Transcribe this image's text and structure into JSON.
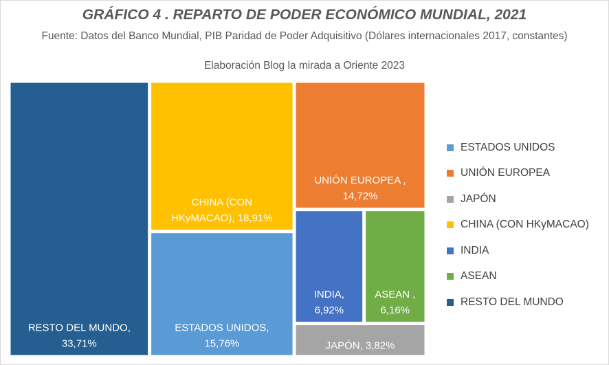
{
  "title": "GRÁFICO 4 .  REPARTO DE PODER ECONÓMICO  MUNDIAL, 2021",
  "subtitle_line1": "Fuente:  Datos del Banco Mundial, PIB Paridad de Poder Adquisitivo (Dólares internacionales 2017, constantes)",
  "subtitle_line2": "Elaboración Blog la mirada a Oriente 2023",
  "chart_data": {
    "type": "treemap",
    "title": "GRÁFICO 4 .  REPARTO DE PODER ECONÓMICO  MUNDIAL, 2021",
    "unit": "%",
    "items": [
      {
        "name": "RESTO DEL MUNDO",
        "value": 33.71,
        "label1": "RESTO DEL MUNDO,",
        "label2": "33,71%",
        "color": "#255E91"
      },
      {
        "name": "CHINA (CON HKyMACAO)",
        "value": 18.91,
        "label1": "CHINA (CON",
        "label2": "HKyMACAO), 18,91%",
        "color": "#FFC000"
      },
      {
        "name": "ESTADOS UNIDOS",
        "value": 15.76,
        "label1": "ESTADOS UNIDOS,",
        "label2": "15,76%",
        "color": "#5B9BD5"
      },
      {
        "name": "UNIÓN EUROPEA",
        "value": 14.72,
        "label1": "UNIÓN EUROPEA ,",
        "label2": "14,72%",
        "color": "#ED7D31"
      },
      {
        "name": "INDIA",
        "value": 6.92,
        "label1": "INDIA,",
        "label2": "6,92%",
        "color": "#4472C4"
      },
      {
        "name": "ASEAN",
        "value": 6.16,
        "label1": "ASEAN ,",
        "label2": "6,16%",
        "color": "#70AD47"
      },
      {
        "name": "JAPÓN",
        "value": 3.82,
        "label1": "JAPÓN, 3,82%",
        "label2": "",
        "color": "#A5A5A5"
      }
    ],
    "legend": [
      {
        "name": "ESTADOS UNIDOS",
        "color": "#5B9BD5"
      },
      {
        "name": "UNIÓN EUROPEA",
        "color": "#ED7D31"
      },
      {
        "name": "JAPÓN",
        "color": "#A5A5A5"
      },
      {
        "name": "CHINA (CON HKyMACAO)",
        "color": "#FFC000"
      },
      {
        "name": "INDIA",
        "color": "#4472C4"
      },
      {
        "name": "ASEAN",
        "color": "#70AD47"
      },
      {
        "name": "RESTO DEL MUNDO",
        "color": "#255E91"
      }
    ]
  }
}
